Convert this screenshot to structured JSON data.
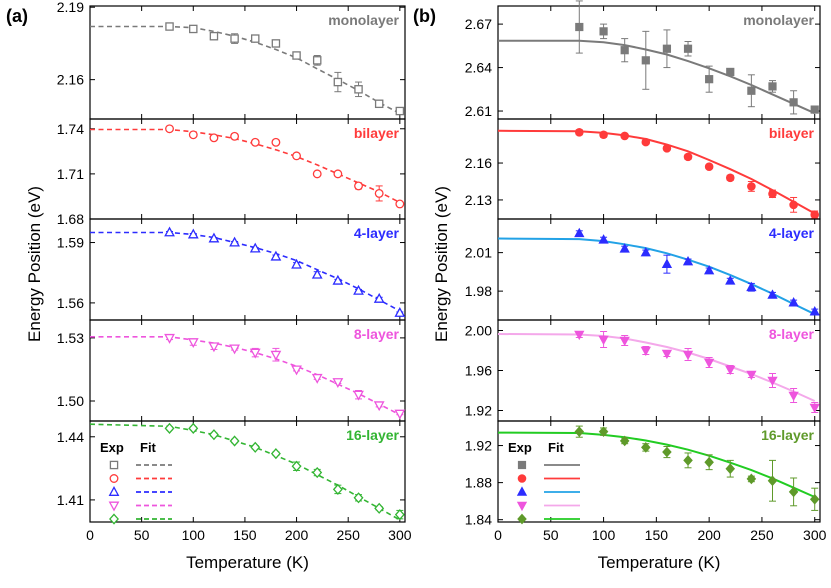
{
  "chart_data": [
    {
      "panel_label": "(a)",
      "type": "scatter",
      "xlabel": "Temperature (K)",
      "ylabel": "Energy Position (eV)",
      "xlim": [
        0,
        305
      ],
      "xticks": [
        0,
        50,
        100,
        150,
        200,
        250,
        300
      ],
      "marker_fill": "open",
      "fit_style": "dashed",
      "legend": {
        "exp_label": "Exp",
        "fit_label": "Fit",
        "subplot": 4
      },
      "subplots": [
        {
          "name": "monolayer",
          "color": "#7a7a7a",
          "marker": "square",
          "ylim": [
            2.1437,
            2.1905
          ],
          "yticks": [
            2.16,
            2.19
          ],
          "x": [
            77,
            100,
            120,
            140,
            160,
            180,
            200,
            220,
            240,
            260,
            280,
            300
          ],
          "y": [
            2.182,
            2.181,
            2.178,
            2.177,
            2.177,
            2.175,
            2.17,
            2.168,
            2.159,
            2.156,
            2.15,
            2.147
          ],
          "err": [
            0.0007,
            0.0007,
            0.0015,
            0.002,
            0.001,
            0.001,
            0.001,
            0.002,
            0.004,
            0.003,
            0.0015,
            0.0008
          ],
          "fit_x": [
            0,
            77,
            100,
            120,
            140,
            160,
            180,
            200,
            220,
            240,
            260,
            280,
            300
          ],
          "fit_y": [
            2.182,
            2.182,
            2.1815,
            2.18,
            2.178,
            2.1755,
            2.1725,
            2.169,
            2.1645,
            2.16,
            2.1555,
            2.1505,
            2.146
          ]
        },
        {
          "name": "bilayer",
          "color": "#ff3b3b",
          "marker": "circle",
          "ylim": [
            1.68,
            1.7465
          ],
          "yticks": [
            1.68,
            1.71,
            1.74
          ],
          "x": [
            77,
            100,
            120,
            140,
            160,
            180,
            200,
            220,
            240,
            260,
            280,
            300
          ],
          "y": [
            1.74,
            1.736,
            1.734,
            1.735,
            1.731,
            1.731,
            1.722,
            1.71,
            1.71,
            1.702,
            1.697,
            1.69
          ],
          "err": [
            0.0005,
            0.0007,
            0.0007,
            0.0015,
            0.001,
            0.0007,
            0.0015,
            0.0007,
            0.0007,
            0.002,
            0.005,
            0.0008
          ],
          "fit_x": [
            0,
            77,
            100,
            120,
            140,
            160,
            180,
            200,
            220,
            240,
            260,
            280,
            300
          ],
          "fit_y": [
            1.7395,
            1.7395,
            1.738,
            1.736,
            1.7335,
            1.73,
            1.726,
            1.7215,
            1.716,
            1.71,
            1.704,
            1.698,
            1.691
          ]
        },
        {
          "name": "4-layer",
          "color": "#2c2cff",
          "marker": "triangle-up",
          "ylim": [
            1.5515,
            1.6017
          ],
          "yticks": [
            1.56,
            1.59
          ],
          "x": [
            77,
            100,
            120,
            140,
            160,
            180,
            200,
            220,
            240,
            260,
            280,
            300
          ],
          "y": [
            1.595,
            1.594,
            1.592,
            1.59,
            1.587,
            1.583,
            1.579,
            1.574,
            1.571,
            1.566,
            1.562,
            1.555
          ],
          "err": [
            0.0005,
            0.0005,
            0.0005,
            0.0005,
            0.0005,
            0.0008,
            0.001,
            0.0015,
            0.0007,
            0.0007,
            0.0008,
            0.0005
          ],
          "fit_x": [
            0,
            77,
            100,
            120,
            140,
            160,
            180,
            200,
            220,
            240,
            260,
            280,
            300
          ],
          "fit_y": [
            1.595,
            1.595,
            1.594,
            1.5925,
            1.59,
            1.5875,
            1.5845,
            1.581,
            1.5765,
            1.572,
            1.567,
            1.5615,
            1.556
          ]
        },
        {
          "name": "8-layer",
          "color": "#ee55dd",
          "marker": "triangle-down",
          "ylim": [
            1.4905,
            1.5385
          ],
          "yticks": [
            1.5,
            1.53
          ],
          "x": [
            77,
            100,
            120,
            140,
            160,
            180,
            200,
            220,
            240,
            260,
            280,
            300
          ],
          "y": [
            1.53,
            1.528,
            1.526,
            1.525,
            1.523,
            1.522,
            1.515,
            1.511,
            1.509,
            1.503,
            1.498,
            1.494
          ],
          "err": [
            0.0008,
            0.0015,
            0.0015,
            0.0008,
            0.002,
            0.003,
            0.0007,
            0.0007,
            0.0007,
            0.002,
            0.0008,
            0.0005
          ],
          "fit_x": [
            0,
            77,
            100,
            120,
            140,
            160,
            180,
            200,
            220,
            240,
            260,
            280,
            300
          ],
          "fit_y": [
            1.5305,
            1.5305,
            1.529,
            1.5275,
            1.5255,
            1.523,
            1.52,
            1.5165,
            1.5125,
            1.508,
            1.5035,
            1.4985,
            1.4935
          ]
        },
        {
          "name": "16-layer",
          "color": "#33b533",
          "marker": "diamond",
          "ylim": [
            1.3995,
            1.4475
          ],
          "yticks": [
            1.41,
            1.44
          ],
          "x": [
            77,
            100,
            120,
            140,
            160,
            180,
            200,
            220,
            240,
            260,
            280,
            300
          ],
          "y": [
            1.444,
            1.444,
            1.441,
            1.438,
            1.435,
            1.432,
            1.426,
            1.423,
            1.415,
            1.411,
            1.406,
            1.403
          ],
          "err": [
            0.0007,
            0.0007,
            0.0008,
            0.0008,
            0.0008,
            0.0008,
            0.002,
            0.0015,
            0.002,
            0.0015,
            0.0008,
            0.002
          ],
          "fit_x": [
            0,
            77,
            100,
            120,
            140,
            160,
            180,
            200,
            220,
            240,
            260,
            280,
            300
          ],
          "fit_y": [
            1.446,
            1.445,
            1.443,
            1.441,
            1.438,
            1.435,
            1.431,
            1.427,
            1.422,
            1.417,
            1.4115,
            1.406,
            1.4005
          ]
        }
      ]
    },
    {
      "panel_label": "(b)",
      "type": "scatter",
      "xlabel": "Temperature (K)",
      "ylabel": "Energy Position (eV)",
      "xlim": [
        0,
        305
      ],
      "xticks": [
        0,
        50,
        100,
        150,
        200,
        250,
        300
      ],
      "marker_fill": "filled",
      "fit_style": "solid",
      "legend": {
        "exp_label": "Exp",
        "fit_label": "Fit",
        "subplot": 4
      },
      "subplots": [
        {
          "name": "monolayer",
          "color": "#7a7a7a",
          "marker": "square",
          "ylim": [
            2.6045,
            2.6825
          ],
          "yticks": [
            2.61,
            2.64,
            2.67
          ],
          "x": [
            77,
            100,
            120,
            140,
            160,
            180,
            200,
            220,
            240,
            260,
            280,
            300
          ],
          "y": [
            2.668,
            2.665,
            2.652,
            2.645,
            2.653,
            2.653,
            2.632,
            2.637,
            2.624,
            2.627,
            2.616,
            2.611
          ],
          "err": [
            0.018,
            0.005,
            0.008,
            0.02,
            0.013,
            0.005,
            0.009,
            0.001,
            0.011,
            0.004,
            0.008,
            0.002
          ],
          "fit_x": [
            0,
            77,
            100,
            120,
            140,
            160,
            180,
            200,
            220,
            240,
            260,
            280,
            300
          ],
          "fit_y": [
            2.6585,
            2.6585,
            2.6575,
            2.6555,
            2.6525,
            2.649,
            2.6445,
            2.6395,
            2.634,
            2.628,
            2.6215,
            2.615,
            2.6085
          ]
        },
        {
          "name": "bilayer",
          "color": "#ff3b3b",
          "marker": "circle",
          "ylim": [
            2.1145,
            2.1958
          ],
          "yticks": [
            2.13,
            2.16
          ],
          "x": [
            77,
            100,
            120,
            140,
            160,
            180,
            200,
            220,
            240,
            260,
            280,
            300
          ],
          "y": [
            2.185,
            2.183,
            2.182,
            2.177,
            2.172,
            2.165,
            2.157,
            2.148,
            2.141,
            2.135,
            2.126,
            2.118
          ],
          "err": [
            0.002,
            0.002,
            0.0015,
            0.0015,
            0.0015,
            0.002,
            0.0015,
            0.002,
            0.004,
            0.003,
            0.006,
            0.003
          ],
          "fit_x": [
            0,
            77,
            100,
            120,
            140,
            160,
            180,
            200,
            220,
            240,
            260,
            280,
            300
          ],
          "fit_y": [
            2.1862,
            2.1858,
            2.1845,
            2.1825,
            2.1795,
            2.175,
            2.1695,
            2.1625,
            2.155,
            2.147,
            2.138,
            2.1285,
            2.119
          ]
        },
        {
          "name": "4-layer",
          "color": "#2c2cff",
          "fit_color": "#22a2e6",
          "marker": "triangle-up",
          "ylim": [
            1.9575,
            2.0362
          ],
          "yticks": [
            1.98,
            2.01
          ],
          "x": [
            77,
            100,
            120,
            140,
            160,
            180,
            200,
            220,
            240,
            260,
            280,
            300
          ],
          "y": [
            2.025,
            2.02,
            2.013,
            2.01,
            2.001,
            2.003,
            1.996,
            1.988,
            1.983,
            1.977,
            1.971,
            1.964
          ],
          "err": [
            0.002,
            0.002,
            0.002,
            0.002,
            0.007,
            0.002,
            0.002,
            0.002,
            0.003,
            0.002,
            0.002,
            0.002
          ],
          "fit_x": [
            0,
            77,
            100,
            120,
            140,
            160,
            180,
            200,
            220,
            240,
            260,
            280,
            300
          ],
          "fit_y": [
            2.021,
            2.0205,
            2.019,
            2.0165,
            2.0135,
            2.0095,
            2.0045,
            1.999,
            1.9925,
            1.9855,
            1.978,
            1.97,
            1.962
          ]
        },
        {
          "name": "8-layer",
          "color": "#ee55dd",
          "fit_color": "#f4a8ea",
          "marker": "triangle-down",
          "ylim": [
            1.9095,
            2.0105
          ],
          "yticks": [
            1.92,
            1.96,
            2.0
          ],
          "x": [
            77,
            100,
            120,
            140,
            160,
            180,
            200,
            220,
            240,
            260,
            280,
            300
          ],
          "y": [
            1.996,
            1.991,
            1.99,
            1.98,
            1.977,
            1.976,
            1.968,
            1.961,
            1.956,
            1.95,
            1.935,
            1.923
          ],
          "err": [
            0.003,
            0.008,
            0.005,
            0.004,
            0.003,
            0.006,
            0.005,
            0.004,
            0.003,
            0.007,
            0.007,
            0.005
          ],
          "fit_x": [
            0,
            77,
            100,
            120,
            140,
            160,
            180,
            200,
            220,
            240,
            260,
            280,
            300
          ],
          "fit_y": [
            1.9965,
            1.996,
            1.9945,
            1.992,
            1.988,
            1.9835,
            1.978,
            1.9715,
            1.964,
            1.9565,
            1.948,
            1.939,
            1.9295
          ]
        },
        {
          "name": "16-layer",
          "color": "#5f9a2a",
          "fit_color": "#22cc22",
          "marker": "diamond",
          "ylim": [
            1.8375,
            1.9465
          ],
          "yticks": [
            1.84,
            1.88,
            1.92
          ],
          "x": [
            77,
            100,
            120,
            140,
            160,
            180,
            200,
            220,
            240,
            260,
            280,
            300
          ],
          "y": [
            1.935,
            1.935,
            1.925,
            1.918,
            1.913,
            1.904,
            1.902,
            1.895,
            1.884,
            1.882,
            1.87,
            1.862
          ],
          "err": [
            0.006,
            0.004,
            0.003,
            0.004,
            0.006,
            0.008,
            0.008,
            0.009,
            0.003,
            0.022,
            0.015,
            0.012
          ],
          "fit_x": [
            0,
            77,
            100,
            120,
            140,
            160,
            180,
            200,
            220,
            240,
            260,
            280,
            300
          ],
          "fit_y": [
            1.934,
            1.9335,
            1.9315,
            1.929,
            1.9255,
            1.921,
            1.9155,
            1.909,
            1.9015,
            1.8935,
            1.8845,
            1.8745,
            1.8645
          ]
        }
      ]
    }
  ]
}
